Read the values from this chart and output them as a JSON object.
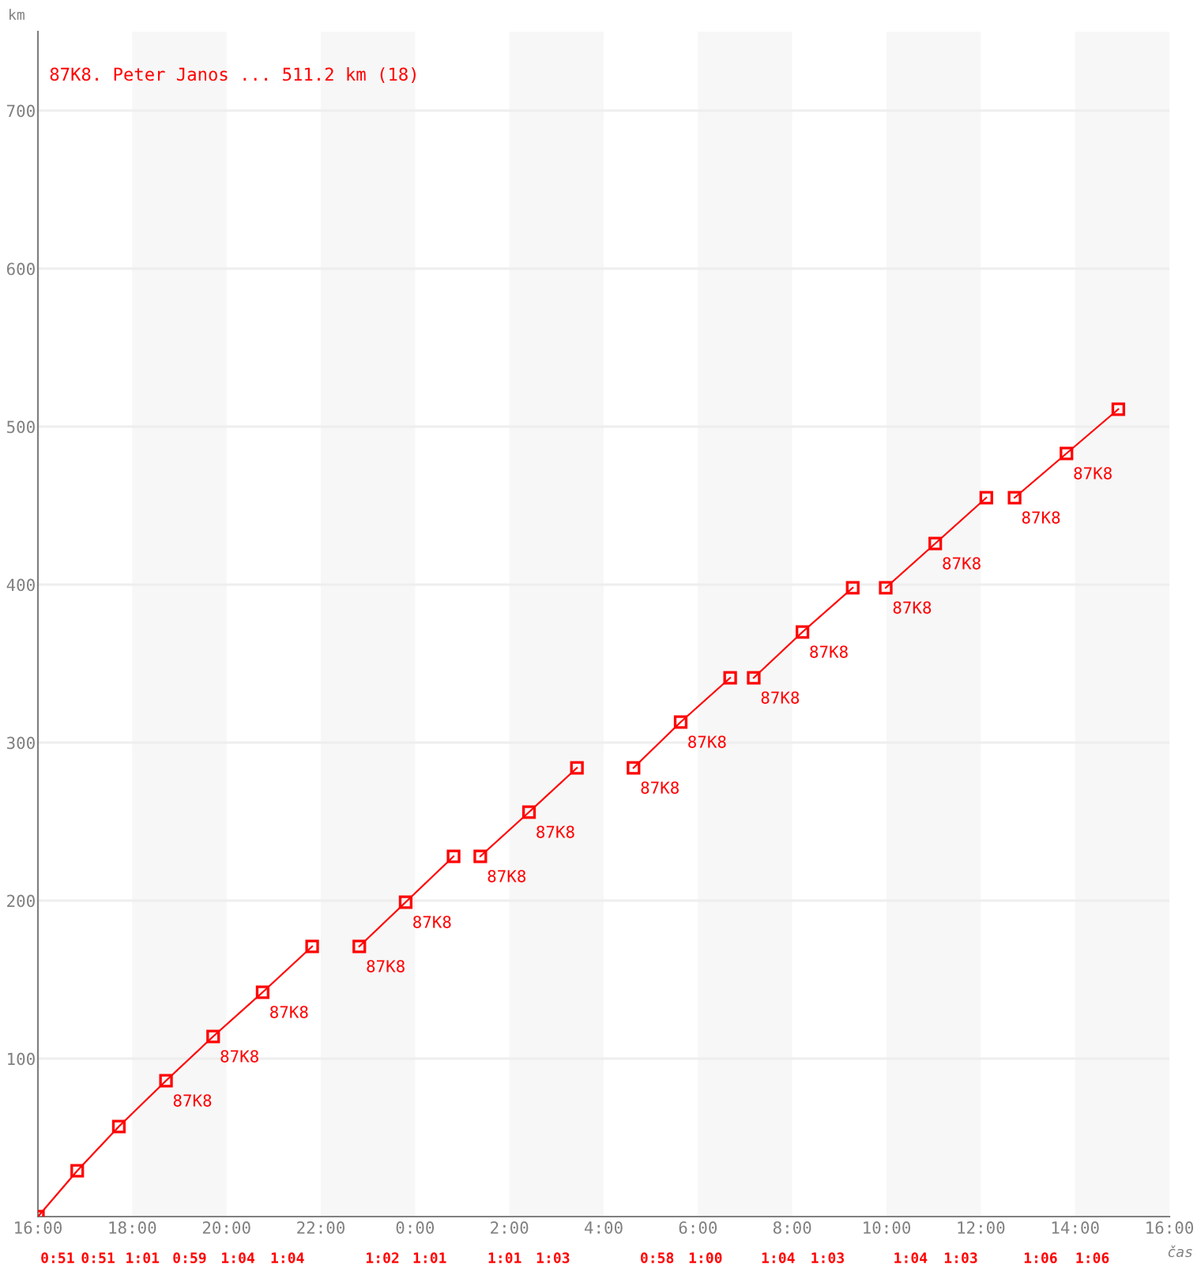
{
  "chart_data": {
    "type": "line",
    "title": "87K8. Peter Janos ... 511.2 km (18)",
    "xlabel": "čas",
    "ylabel": "km",
    "xlim": [
      "2000-01-01T16:00",
      "2000-01-02T16:00"
    ],
    "ylim": [
      0,
      750
    ],
    "xticks": [
      {
        "value": "2000-01-01T16:00",
        "label": "16:00"
      },
      {
        "value": "2000-01-01T18:00",
        "label": "18:00"
      },
      {
        "value": "2000-01-01T20:00",
        "label": "20:00"
      },
      {
        "value": "2000-01-01T22:00",
        "label": "22:00"
      },
      {
        "value": "2000-01-02T00:00",
        "label": "0:00"
      },
      {
        "value": "2000-01-02T02:00",
        "label": "2:00"
      },
      {
        "value": "2000-01-02T04:00",
        "label": "4:00"
      },
      {
        "value": "2000-01-02T06:00",
        "label": "6:00"
      },
      {
        "value": "2000-01-02T08:00",
        "label": "8:00"
      },
      {
        "value": "2000-01-02T10:00",
        "label": "10:00"
      },
      {
        "value": "2000-01-02T12:00",
        "label": "12:00"
      },
      {
        "value": "2000-01-02T14:00",
        "label": "14:00"
      },
      {
        "value": "2000-01-02T16:00",
        "label": "16:00"
      }
    ],
    "yticks": [
      100,
      200,
      300,
      400,
      500,
      600,
      700
    ],
    "grid": "y",
    "legend": false,
    "marker": "square",
    "line_style": "solid",
    "bands": [
      {
        "axis": "x",
        "from": "2000-01-01T18:00",
        "to": "2000-01-01T20:00",
        "color": "#f7f7f7"
      },
      {
        "axis": "x",
        "from": "2000-01-01T22:00",
        "to": "2000-01-02T00:00",
        "color": "#f7f7f7"
      },
      {
        "axis": "x",
        "from": "2000-01-02T02:00",
        "to": "2000-01-02T04:00",
        "color": "#f7f7f7"
      },
      {
        "axis": "x",
        "from": "2000-01-02T06:00",
        "to": "2000-01-02T08:00",
        "color": "#f7f7f7"
      },
      {
        "axis": "x",
        "from": "2000-01-02T10:00",
        "to": "2000-01-02T12:00",
        "color": "#f7f7f7"
      },
      {
        "axis": "x",
        "from": "2000-01-02T14:00",
        "to": "2000-01-02T16:00",
        "color": "#f7f7f7"
      }
    ],
    "annotations": [
      {
        "text": "87K8",
        "x": "2000-01-01T18:43",
        "y": 86
      },
      {
        "text": "87K8",
        "x": "2000-01-01T19:43",
        "y": 114
      },
      {
        "text": "87K8",
        "x": "2000-01-01T20:46",
        "y": 142
      },
      {
        "text": "87K8",
        "x": "2000-01-01T22:49",
        "y": 171
      },
      {
        "text": "87K8",
        "x": "2000-01-01T23:48",
        "y": 199
      },
      {
        "text": "87K8",
        "x": "2000-01-02T01:23",
        "y": 228
      },
      {
        "text": "87K8",
        "x": "2000-01-02T02:25",
        "y": 256
      },
      {
        "text": "87K8",
        "x": "2000-01-02T04:38",
        "y": 284
      },
      {
        "text": "87K8",
        "x": "2000-01-02T05:38",
        "y": 313
      },
      {
        "text": "87K8",
        "x": "2000-01-02T07:11",
        "y": 341
      },
      {
        "text": "87K8",
        "x": "2000-01-02T08:13",
        "y": 370
      },
      {
        "text": "87K8",
        "x": "2000-01-02T09:59",
        "y": 398
      },
      {
        "text": "87K8",
        "x": "2000-01-02T11:02",
        "y": 426
      },
      {
        "text": "87K8",
        "x": "2000-01-02T12:43",
        "y": 455
      },
      {
        "text": "87K8",
        "x": "2000-01-02T13:49",
        "y": 483
      },
      "0:51",
      "0:51",
      "1:01",
      "0:59",
      "1:04",
      "1:04",
      "1:02",
      "1:01",
      "1:01",
      "1:03",
      "0:58",
      "1:00",
      "1:04",
      "1:03",
      "1:04",
      "1:03",
      "1:06",
      "1:06"
    ],
    "series": [
      {
        "color": "#ff0000",
        "x": [
          "2000-01-01T16:00",
          "2000-01-01T16:50",
          "2000-01-01T17:43",
          "2000-01-01T18:43",
          "2000-01-01T19:43",
          "2000-01-01T20:46",
          "2000-01-01T21:49"
        ],
        "values": [
          0,
          29,
          57,
          86,
          114,
          142,
          171
        ]
      },
      {
        "color": "#ff0000",
        "x": [
          "2000-01-01T22:49",
          "2000-01-01T23:48",
          "2000-01-02T00:49"
        ],
        "values": [
          171,
          199,
          228
        ]
      },
      {
        "color": "#ff0000",
        "x": [
          "2000-01-02T01:23",
          "2000-01-02T02:25",
          "2000-01-02T03:26"
        ],
        "values": [
          228,
          256,
          284
        ]
      },
      {
        "color": "#ff0000",
        "x": [
          "2000-01-02T04:38",
          "2000-01-02T05:38",
          "2000-01-02T06:41"
        ],
        "values": [
          284,
          313,
          341
        ]
      },
      {
        "color": "#ff0000",
        "x": [
          "2000-01-02T07:11",
          "2000-01-02T08:13",
          "2000-01-02T09:17"
        ],
        "values": [
          341,
          370,
          398
        ]
      },
      {
        "color": "#ff0000",
        "x": [
          "2000-01-02T09:59",
          "2000-01-02T11:02",
          "2000-01-02T12:07"
        ],
        "values": [
          398,
          426,
          455
        ]
      },
      {
        "color": "#ff0000",
        "x": [
          "2000-01-02T12:43",
          "2000-01-02T13:49",
          "2000-01-02T14:55"
        ],
        "values": [
          455,
          483,
          511
        ]
      }
    ]
  }
}
